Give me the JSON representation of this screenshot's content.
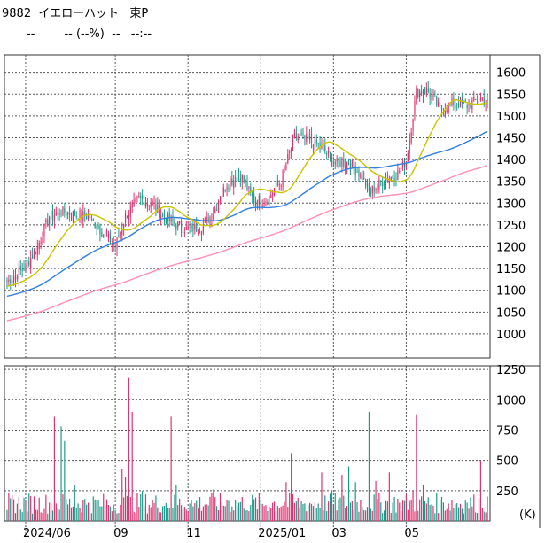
{
  "header": {
    "code": "9882",
    "name": "イエローハット",
    "market": "東P",
    "price": "--",
    "change": "-- (--%)",
    "time_dash": "--",
    "time": "--:--"
  },
  "colors": {
    "up": "#e0306e",
    "down": "#1b9a8a",
    "ma_short": "#c9c400",
    "ma_mid": "#2f7fe0",
    "ma_long": "#ff8fb0",
    "grid": "#555555"
  },
  "chart_data": {
    "type": "candlestick",
    "price_axis": {
      "range": [
        945,
        1640
      ],
      "ticks": [
        1000,
        1050,
        1100,
        1150,
        1200,
        1250,
        1300,
        1350,
        1400,
        1450,
        1500,
        1550,
        1600
      ]
    },
    "volume_axis": {
      "range": [
        0,
        1280
      ],
      "ticks": [
        250,
        500,
        750,
        1000,
        1250
      ],
      "unit": "(K)"
    },
    "x_labels": [
      {
        "label": "2024/06",
        "index": 11
      },
      {
        "label": "09",
        "index": 64
      },
      {
        "label": "11",
        "index": 107
      },
      {
        "label": "2025/01",
        "index": 150
      },
      {
        "label": "03",
        "index": 193
      },
      {
        "label": "05",
        "index": 236
      }
    ],
    "num_days": 285,
    "price_series": [
      {
        "day": 0,
        "close": 1120
      },
      {
        "day": 10,
        "close": 1150
      },
      {
        "day": 18,
        "close": 1200
      },
      {
        "day": 25,
        "close": 1270
      },
      {
        "day": 32,
        "close": 1280
      },
      {
        "day": 40,
        "close": 1275
      },
      {
        "day": 48,
        "close": 1270
      },
      {
        "day": 55,
        "close": 1240
      },
      {
        "day": 64,
        "close": 1200
      },
      {
        "day": 70,
        "close": 1270
      },
      {
        "day": 78,
        "close": 1310
      },
      {
        "day": 86,
        "close": 1300
      },
      {
        "day": 92,
        "close": 1270
      },
      {
        "day": 98,
        "close": 1255
      },
      {
        "day": 106,
        "close": 1240
      },
      {
        "day": 115,
        "close": 1245
      },
      {
        "day": 122,
        "close": 1280
      },
      {
        "day": 130,
        "close": 1345
      },
      {
        "day": 138,
        "close": 1365
      },
      {
        "day": 146,
        "close": 1305
      },
      {
        "day": 154,
        "close": 1310
      },
      {
        "day": 162,
        "close": 1350
      },
      {
        "day": 170,
        "close": 1455
      },
      {
        "day": 178,
        "close": 1445
      },
      {
        "day": 186,
        "close": 1430
      },
      {
        "day": 194,
        "close": 1390
      },
      {
        "day": 202,
        "close": 1395
      },
      {
        "day": 210,
        "close": 1360
      },
      {
        "day": 214,
        "close": 1325
      },
      {
        "day": 222,
        "close": 1350
      },
      {
        "day": 230,
        "close": 1365
      },
      {
        "day": 236,
        "close": 1395
      },
      {
        "day": 242,
        "close": 1555
      },
      {
        "day": 248,
        "close": 1560
      },
      {
        "day": 256,
        "close": 1515
      },
      {
        "day": 264,
        "close": 1530
      },
      {
        "day": 272,
        "close": 1525
      },
      {
        "day": 280,
        "close": 1540
      },
      {
        "day": 284,
        "close": 1530
      }
    ],
    "volume_series": [
      {
        "day": 0,
        "v": 90
      },
      {
        "day": 25,
        "v": 150
      },
      {
        "day": 28,
        "v": 860
      },
      {
        "day": 32,
        "v": 780
      },
      {
        "day": 34,
        "v": 660
      },
      {
        "day": 40,
        "v": 300
      },
      {
        "day": 48,
        "v": 150
      },
      {
        "day": 56,
        "v": 120
      },
      {
        "day": 64,
        "v": 90
      },
      {
        "day": 68,
        "v": 430
      },
      {
        "day": 70,
        "v": 360
      },
      {
        "day": 72,
        "v": 1180
      },
      {
        "day": 74,
        "v": 900
      },
      {
        "day": 80,
        "v": 250
      },
      {
        "day": 92,
        "v": 120
      },
      {
        "day": 97,
        "v": 860
      },
      {
        "day": 100,
        "v": 300
      },
      {
        "day": 110,
        "v": 120
      },
      {
        "day": 122,
        "v": 260
      },
      {
        "day": 130,
        "v": 170
      },
      {
        "day": 140,
        "v": 100
      },
      {
        "day": 155,
        "v": 120
      },
      {
        "day": 165,
        "v": 320
      },
      {
        "day": 168,
        "v": 560
      },
      {
        "day": 175,
        "v": 140
      },
      {
        "day": 180,
        "v": 140
      },
      {
        "day": 186,
        "v": 400
      },
      {
        "day": 192,
        "v": 250
      },
      {
        "day": 198,
        "v": 380
      },
      {
        "day": 202,
        "v": 450
      },
      {
        "day": 206,
        "v": 320
      },
      {
        "day": 214,
        "v": 900
      },
      {
        "day": 218,
        "v": 330
      },
      {
        "day": 226,
        "v": 400
      },
      {
        "day": 232,
        "v": 150
      },
      {
        "day": 240,
        "v": 250
      },
      {
        "day": 242,
        "v": 880
      },
      {
        "day": 246,
        "v": 300
      },
      {
        "day": 256,
        "v": 170
      },
      {
        "day": 272,
        "v": 150
      },
      {
        "day": 280,
        "v": 500
      },
      {
        "day": 284,
        "v": 200
      }
    ]
  }
}
